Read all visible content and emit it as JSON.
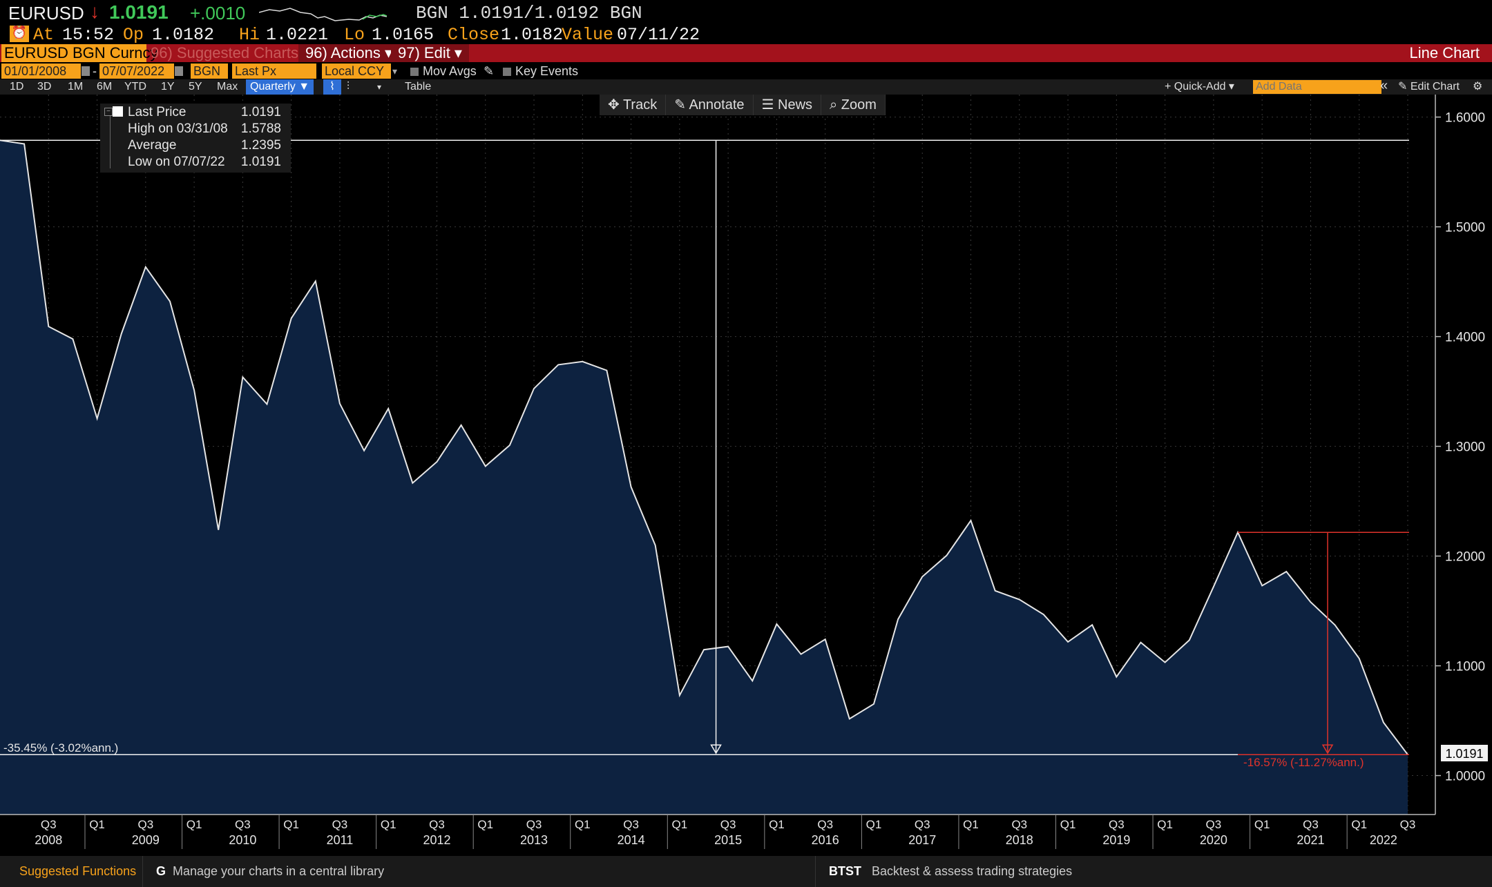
{
  "header": {
    "ticker": "EURUSD",
    "last_price": "1.0191",
    "change": "+.0010",
    "source_quote": "BGN 1.0191/1.0192 BGN",
    "at_label": "At",
    "time": "15:52",
    "op_label": "Op",
    "open": "1.0182",
    "hi_label": "Hi",
    "high": "1.0221",
    "lo_label": "Lo",
    "low": "1.0165",
    "close_label": "Close",
    "close": "1.0182",
    "value_label": "Value",
    "value_date": "07/11/22"
  },
  "menubar": {
    "security": "EURUSD BGN Curncy",
    "suggested": "96) Suggested Charts",
    "actions": "96) Actions ▾",
    "edit": "97) Edit ▾",
    "chart_type": "Line Chart"
  },
  "params": {
    "start_date": "01/01/2008",
    "dash": "-",
    "end_date": "07/07/2022",
    "source": "BGN",
    "field": "Last Px",
    "currency": "Local CCY",
    "mov_avgs": "Mov Avgs",
    "key_events": "Key Events"
  },
  "range_buttons": [
    "1D",
    "3D",
    "1M",
    "6M",
    "YTD",
    "1Y",
    "5Y",
    "Max"
  ],
  "range": {
    "period": "Quarterly ▼",
    "table": "Table",
    "quick_add": "+ Quick-Add ▾",
    "add_data_placeholder": "Add Data",
    "collapse": "«",
    "edit_chart": "Edit Chart",
    "settings": "⚙"
  },
  "chart_tools": {
    "track": "Track",
    "annotate": "Annotate",
    "news": "News",
    "zoom": "Zoom"
  },
  "legend": {
    "last_label": "Last Price",
    "last_value": "1.0191",
    "high_label": "High on 03/31/08",
    "high_value": "1.5788",
    "avg_label": "Average",
    "avg_value": "1.2395",
    "low_label": "Low on 07/07/22",
    "low_value": "1.0191"
  },
  "annotations": {
    "left_change": "-35.45% (-3.02%ann.)",
    "right_change": "-16.57% (-11.27%ann.)",
    "last_badge": "1.0191"
  },
  "footer": {
    "suggested": "Suggested Functions",
    "g_code": "G",
    "g_text": "Manage your charts in a central library",
    "btst_code": "BTST",
    "btst_text": "Backtest & assess trading strategies"
  },
  "colors": {
    "line": "#e6e6e6",
    "fill": "#0d2240",
    "accent": "#f7a21b",
    "menubar": "#a3121c",
    "down": "#e0332b"
  },
  "chart_data": {
    "type": "area",
    "series": [
      {
        "name": "Last Price",
        "quarters": [
          "2008Q1",
          "2008Q2",
          "2008Q3",
          "2008Q4",
          "2009Q1",
          "2009Q2",
          "2009Q3",
          "2009Q4",
          "2010Q1",
          "2010Q2",
          "2010Q3",
          "2010Q4",
          "2011Q1",
          "2011Q2",
          "2011Q3",
          "2011Q4",
          "2012Q1",
          "2012Q2",
          "2012Q3",
          "2012Q4",
          "2013Q1",
          "2013Q2",
          "2013Q3",
          "2013Q4",
          "2014Q1",
          "2014Q2",
          "2014Q3",
          "2014Q4",
          "2015Q1",
          "2015Q2",
          "2015Q3",
          "2015Q4",
          "2016Q1",
          "2016Q2",
          "2016Q3",
          "2016Q4",
          "2017Q1",
          "2017Q2",
          "2017Q3",
          "2017Q4",
          "2018Q1",
          "2018Q2",
          "2018Q3",
          "2018Q4",
          "2019Q1",
          "2019Q2",
          "2019Q3",
          "2019Q4",
          "2020Q1",
          "2020Q2",
          "2020Q3",
          "2020Q4",
          "2021Q1",
          "2021Q2",
          "2021Q3",
          "2021Q4",
          "2022Q1",
          "2022Q2",
          "2022Q3"
        ],
        "values": [
          1.5788,
          1.5755,
          1.4092,
          1.3978,
          1.3253,
          1.4025,
          1.4634,
          1.4321,
          1.3512,
          1.2238,
          1.3631,
          1.3384,
          1.4166,
          1.4505,
          1.3389,
          1.2961,
          1.3343,
          1.2666,
          1.2859,
          1.3193,
          1.2819,
          1.301,
          1.3526,
          1.3743,
          1.3772,
          1.3692,
          1.263,
          1.2098,
          1.0731,
          1.1147,
          1.1176,
          1.0863,
          1.138,
          1.1106,
          1.1241,
          1.0517,
          1.0652,
          1.1424,
          1.1812,
          1.2005,
          1.2324,
          1.1684,
          1.1604,
          1.1467,
          1.1218,
          1.1373,
          1.0899,
          1.1213,
          1.1031,
          1.1234,
          1.1721,
          1.2216,
          1.173,
          1.1858,
          1.1581,
          1.1372,
          1.1067,
          1.0484,
          1.0191
        ]
      }
    ],
    "y_ticks": [
      "1.6000",
      "1.5000",
      "1.4000",
      "1.3000",
      "1.2000",
      "1.1000",
      "1.0000"
    ],
    "ylim": [
      0.9645,
      1.6205
    ],
    "quarter_ticks": [
      "Q3",
      "Q1",
      "Q3",
      "Q1",
      "Q3",
      "Q1",
      "Q3",
      "Q1",
      "Q3",
      "Q1",
      "Q3",
      "Q1",
      "Q3",
      "Q1",
      "Q3",
      "Q1",
      "Q3",
      "Q1",
      "Q3",
      "Q1",
      "Q3",
      "Q1",
      "Q3",
      "Q1",
      "Q3",
      "Q1",
      "Q3",
      "Q1",
      "Q3"
    ],
    "year_labels": [
      "2008",
      "2009",
      "2010",
      "2011",
      "2012",
      "2013",
      "2014",
      "2015",
      "2016",
      "2017",
      "2018",
      "2019",
      "2020",
      "2021",
      "2022"
    ],
    "high_line": 1.5788,
    "low_line": 1.0191,
    "grid": true,
    "legend_position": "top-left"
  }
}
